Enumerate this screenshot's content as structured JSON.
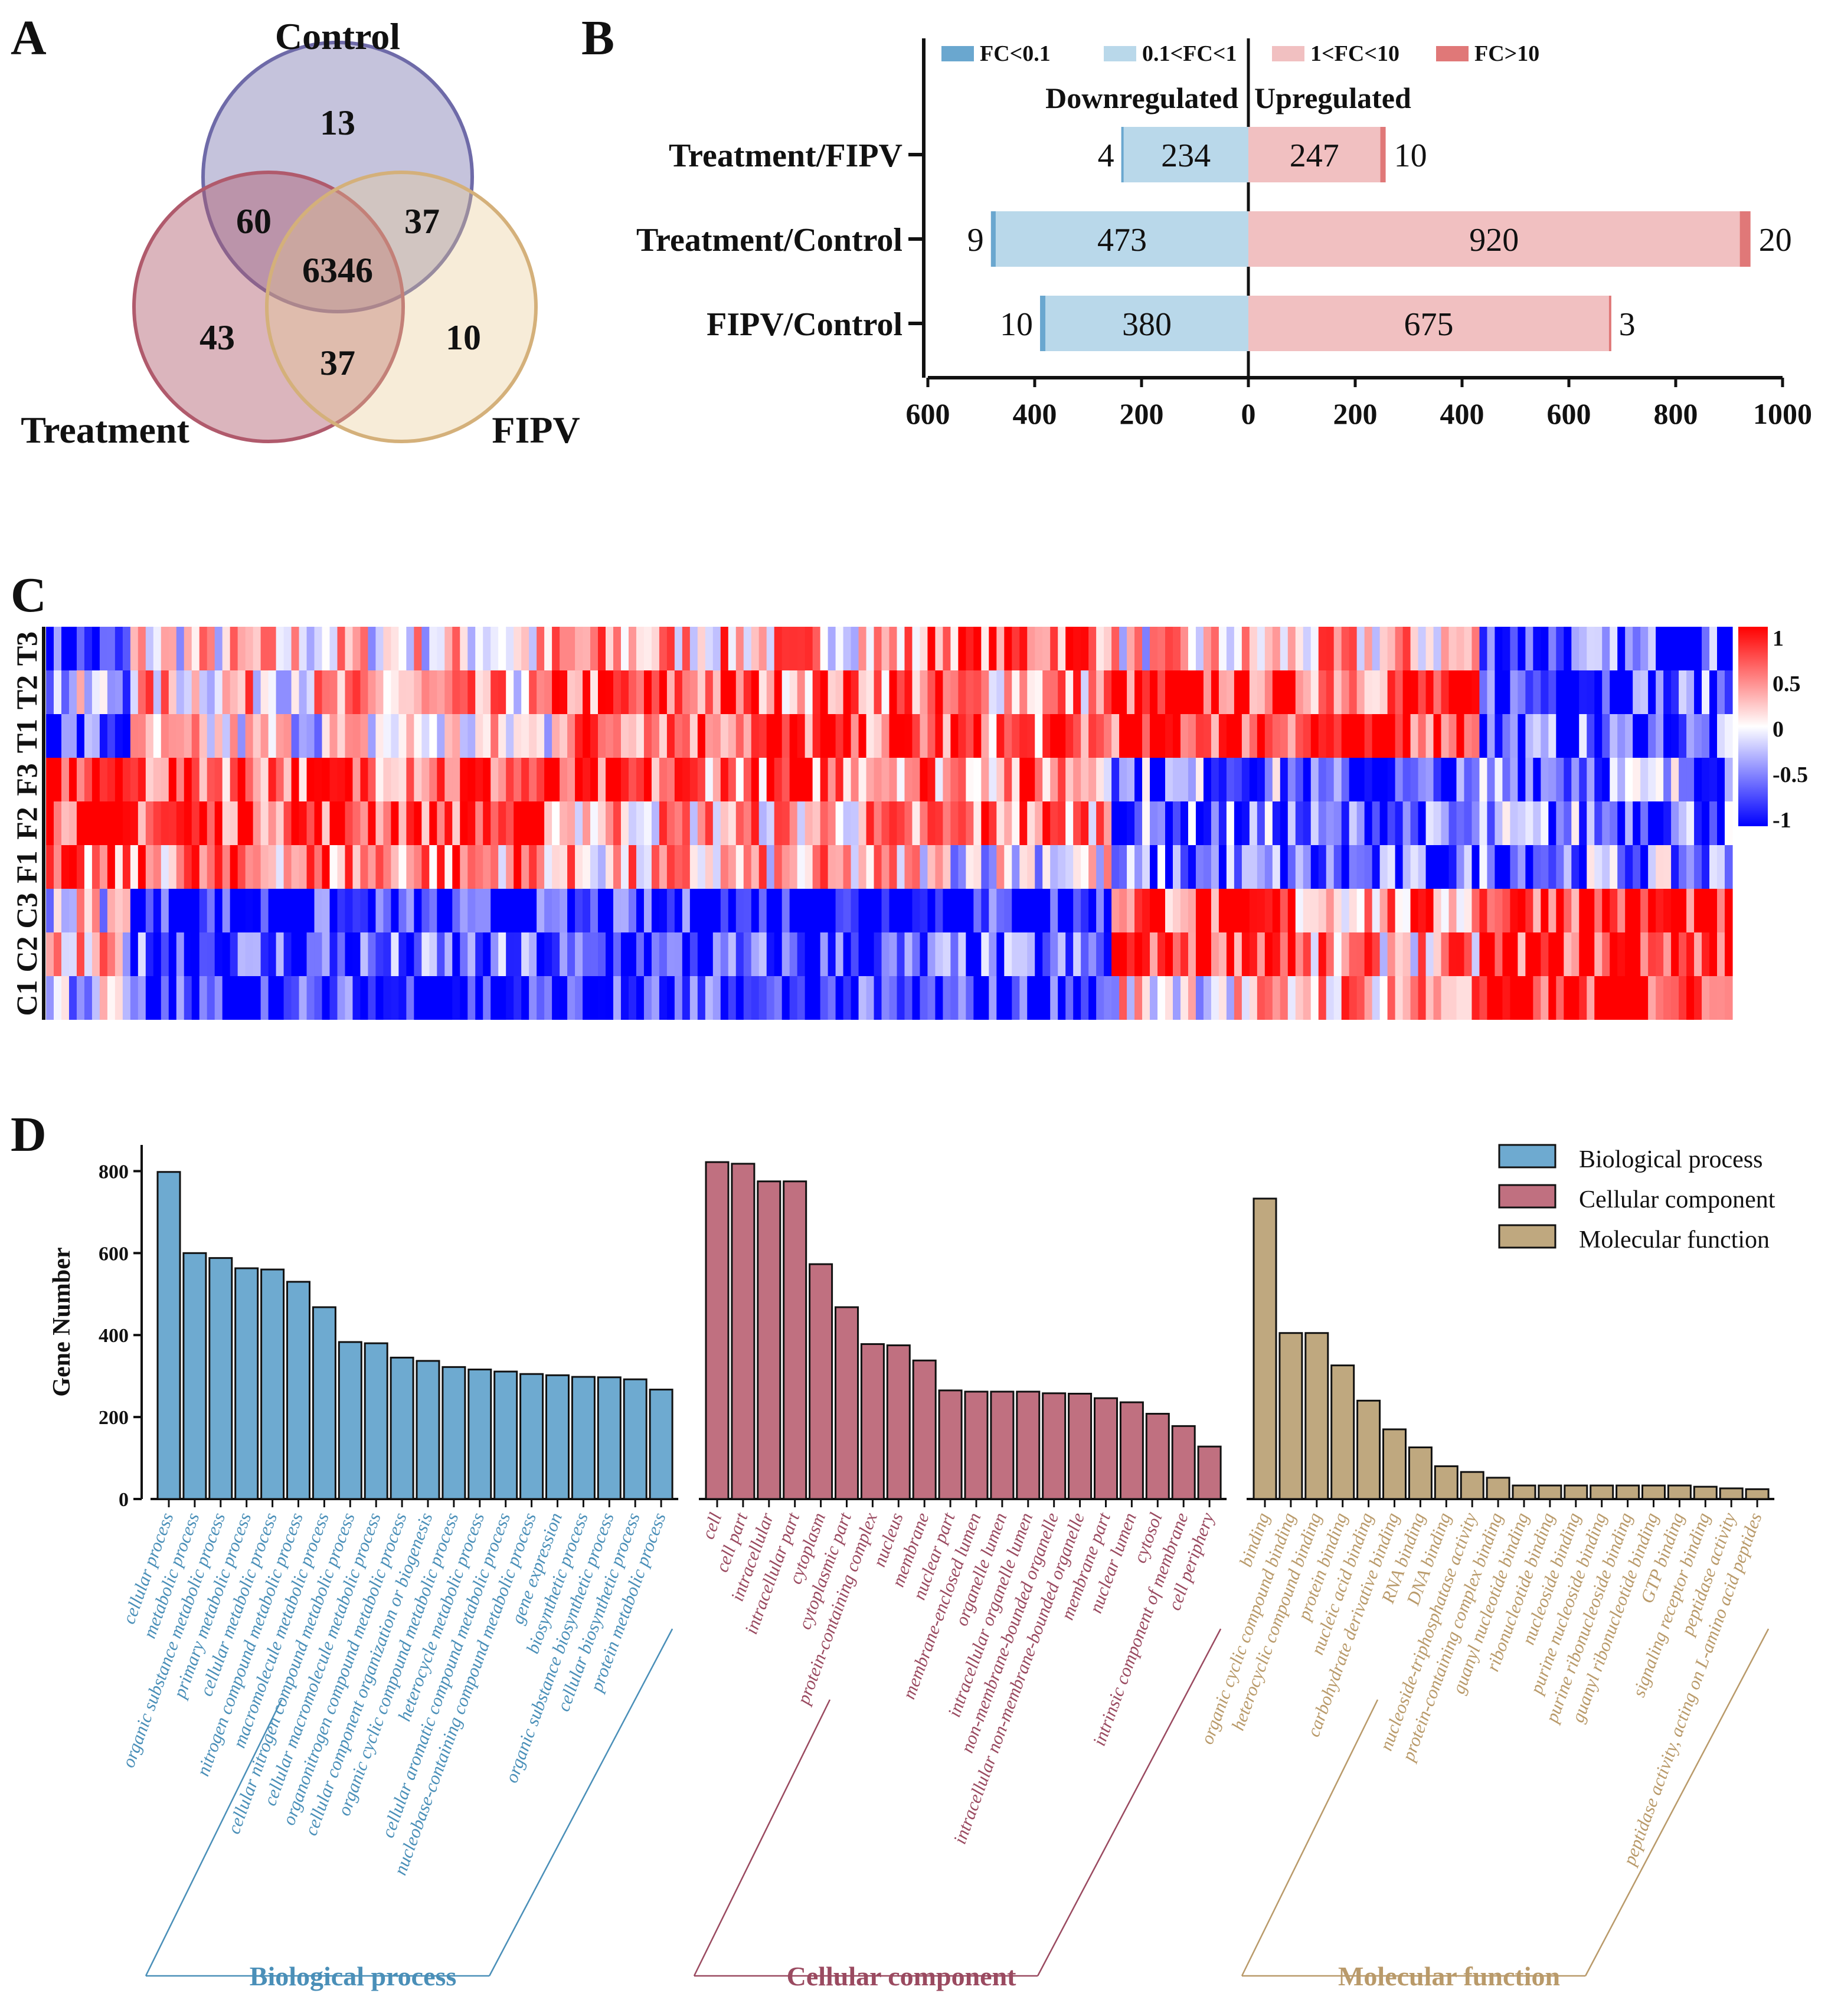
{
  "panels": [
    "A",
    "B",
    "C",
    "D"
  ],
  "colors": {
    "control": "#6e6aa8",
    "treatment": "#b05a6c",
    "fipv": "#d4b07a",
    "fc_lt_01": "#6aa7cf",
    "fc_01_1": "#b9d8ea",
    "fc_1_10": "#f1c0c1",
    "fc_gt_10": "#e07878",
    "bp": "#6eaad0",
    "cc": "#c07080",
    "mf": "#bfa87f",
    "bp_text": "#4a8fb8",
    "cc_text": "#9a4a60",
    "mf_text": "#b99a6a",
    "heat_low": "#0000ff",
    "heat_mid": "#ffffff",
    "heat_high": "#ff0000"
  },
  "chart_data": [
    {
      "panel": "A",
      "type": "venn",
      "sets": [
        "Control",
        "Treatment",
        "FIPV"
      ],
      "regions": [
        {
          "sets": [
            "Control"
          ],
          "value": 13
        },
        {
          "sets": [
            "Treatment"
          ],
          "value": 43
        },
        {
          "sets": [
            "FIPV"
          ],
          "value": 10
        },
        {
          "sets": [
            "Control",
            "Treatment"
          ],
          "value": 60
        },
        {
          "sets": [
            "Control",
            "FIPV"
          ],
          "value": 37
        },
        {
          "sets": [
            "Treatment",
            "FIPV"
          ],
          "value": 37
        },
        {
          "sets": [
            "Control",
            "Treatment",
            "FIPV"
          ],
          "value": 6346
        }
      ]
    },
    {
      "panel": "B",
      "type": "bar",
      "orientation": "horizontal-diverging",
      "categories": [
        "Treatment/FIPV",
        "Treatment/Control",
        "FIPV/Control"
      ],
      "legend": [
        "FC<0.1",
        "0.1<FC<1",
        "1<FC<10",
        "FC>10"
      ],
      "header_left": "Downregulated",
      "header_right": "Upregulated",
      "series": [
        {
          "name": "FC<0.1",
          "values": [
            4,
            9,
            10
          ]
        },
        {
          "name": "0.1<FC<1",
          "values": [
            234,
            473,
            380
          ]
        },
        {
          "name": "1<FC<10",
          "values": [
            247,
            920,
            675
          ]
        },
        {
          "name": "FC>10",
          "values": [
            10,
            20,
            3
          ]
        }
      ],
      "xlim": [
        -600,
        1000
      ],
      "xticks": [
        "600",
        "400",
        "200",
        "0",
        "200",
        "400",
        "600",
        "800",
        "1000"
      ]
    },
    {
      "panel": "C",
      "type": "heatmap",
      "rows": [
        "T3",
        "T2",
        "T1",
        "F3",
        "F2",
        "F1",
        "C3",
        "C2",
        "C1"
      ],
      "colorbar_ticks": [
        "1",
        "0.5",
        "0",
        "-0.5",
        "-1"
      ],
      "value_range": [
        -1,
        1
      ]
    },
    {
      "panel": "D",
      "type": "bar",
      "ylabel": "Gene Number",
      "ylim": [
        0,
        850
      ],
      "yticks": [
        "0",
        "200",
        "400",
        "600",
        "800"
      ],
      "legend": [
        "Biological process",
        "Cellular component",
        "Molecular function"
      ],
      "groups": [
        {
          "name": "Biological process",
          "categories": [
            "cellular process",
            "metabolic process",
            "organic substance metabolic process",
            "primary metabolic process",
            "cellular metabolic process",
            "nitrogen compound metabolic process",
            "macromolecule metabolic process",
            "cellular nitrogen compound metabolic process",
            "cellular macromolecule metabolic process",
            "organonitrogen compound metabolic process",
            "cellular component organization or biogenesis",
            "organic cyclic compound metabolic process",
            "heterocycle metabolic process",
            "cellular aromatic compound metabolic process",
            "nucleobase-containing compound metabolic process",
            "gene expression",
            "biosynthetic process",
            "organic substance biosynthetic process",
            "cellular biosynthetic process",
            "protein metabolic process"
          ],
          "values": [
            798,
            600,
            588,
            563,
            560,
            530,
            468,
            383,
            380,
            345,
            337,
            322,
            316,
            311,
            305,
            302,
            298,
            297,
            292,
            267
          ]
        },
        {
          "name": "Cellular component",
          "categories": [
            "cell",
            "cell part",
            "intracellular",
            "intracellular part",
            "cytoplasm",
            "cytoplasmic part",
            "protein-containing complex",
            "nucleus",
            "membrane",
            "nuclear part",
            "membrane-enclosed lumen",
            "organelle lumen",
            "intracellular organelle lumen",
            "non-membrane-bounded organelle",
            "intracellular non-membrane-bounded organelle",
            "membrane part",
            "nuclear lumen",
            "cytosol",
            "intrinsic component of membrane",
            "cell periphery"
          ],
          "values": [
            822,
            818,
            775,
            775,
            573,
            468,
            378,
            375,
            338,
            265,
            262,
            262,
            262,
            258,
            257,
            246,
            236,
            208,
            178,
            128
          ]
        },
        {
          "name": "Molecular function",
          "categories": [
            "binding",
            "organic cyclic compound binding",
            "heterocyclic compound binding",
            "protein binding",
            "nucleic acid binding",
            "carbohydrate derivative binding",
            "RNA binding",
            "DNA binding",
            "nucleoside-triphosphatase activity",
            "protein-containing complex binding",
            "guanyl nucleotide binding",
            "ribonucleotide binding",
            "nucleoside binding",
            "purine nucleoside binding",
            "purine ribonucleoside binding",
            "guanyl ribonucleotide binding",
            "GTP binding",
            "signaling receptor binding",
            "peptidase activity",
            "peptidase activity, acting on L-amino acid peptides"
          ],
          "values": [
            733,
            405,
            405,
            326,
            240,
            170,
            126,
            80,
            66,
            52,
            33,
            33,
            33,
            33,
            33,
            33,
            33,
            30,
            26,
            24
          ]
        }
      ]
    }
  ]
}
